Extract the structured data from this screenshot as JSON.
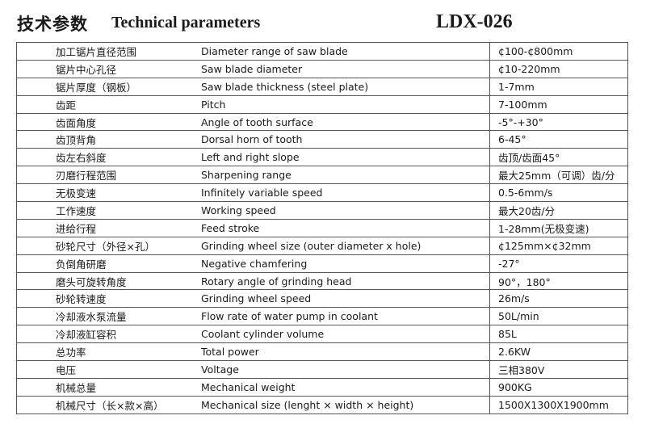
{
  "header": {
    "title_cn": "技术参数",
    "title_en": "Technical parameters",
    "model": "LDX-026"
  },
  "rows": [
    {
      "cn": "加工锯片直径范围",
      "en": "Diameter range of saw blade",
      "value": "¢100-¢800mm"
    },
    {
      "cn": "锯片中心孔径",
      "en": "Saw blade diameter",
      "value": "¢10-220mm"
    },
    {
      "cn": "锯片厚度（钢板）",
      "en": "Saw blade thickness (steel plate)",
      "value": "1-7mm"
    },
    {
      "cn": "齿距",
      "en": "Pitch",
      "value": "7-100mm"
    },
    {
      "cn": "齿面角度",
      "en": "Angle of tooth surface",
      "value": "-5°-+30°"
    },
    {
      "cn": "齿顶背角",
      "en": "Dorsal horn of tooth",
      "value": "6-45°"
    },
    {
      "cn": "齿左右斜度",
      "en": "Left and right slope",
      "value": "齿顶/齿面45°"
    },
    {
      "cn": "刃磨行程范围",
      "en": "Sharpening range",
      "value": "最大25mm（可调）齿/分"
    },
    {
      "cn": "无极变速",
      "en": "Infinitely variable speed",
      "value": "0.5-6mm/s"
    },
    {
      "cn": "工作速度",
      "en": "Working speed",
      "value": "最大20齿/分"
    },
    {
      "cn": "进给行程",
      "en": "Feed stroke",
      "value": "1-28mm(无极变速)"
    },
    {
      "cn": "砂轮尺寸（外径×孔）",
      "en": "Grinding wheel size (outer diameter x hole)",
      "value": "¢125mm×¢32mm"
    },
    {
      "cn": "负倒角研磨",
      "en": "Negative chamfering",
      "value": "-27°"
    },
    {
      "cn": "磨头可旋转角度",
      "en": "Rotary angle of grinding head",
      "value": "90°，180°"
    },
    {
      "cn": "砂轮转速度",
      "en": "Grinding wheel speed",
      "value": "26m/s"
    },
    {
      "cn": "冷却液水泵流量",
      "en": "Flow rate of water pump in coolant",
      "value": "50L/min"
    },
    {
      "cn": "冷却液缸容积",
      "en": "Coolant cylinder volume",
      "value": "85L"
    },
    {
      "cn": "总功率",
      "en": "Total power",
      "value": "2.6KW"
    },
    {
      "cn": "电压",
      "en": "Voltage",
      "value": "三相380V"
    },
    {
      "cn": "机械总量",
      "en": "Mechanical weight",
      "value": "900KG"
    },
    {
      "cn": "机械尺寸（长×款×高）",
      "en": "Mechanical size (lenght × width × height)",
      "value": "1500X1300X1900mm"
    }
  ]
}
